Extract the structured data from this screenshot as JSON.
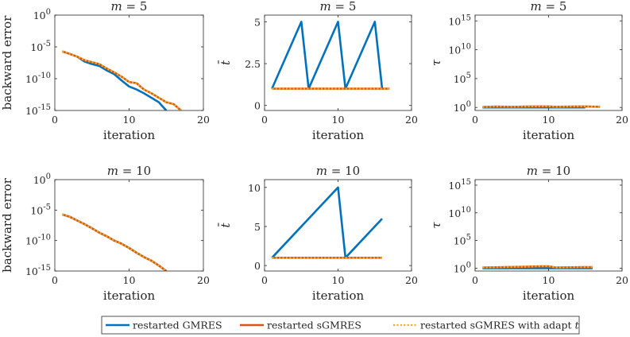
{
  "legend": {
    "entries": [
      {
        "label": "restarted GMRES",
        "color": "#0072BD",
        "style": "solid"
      },
      {
        "label": "restarted sGMRES",
        "color": "#D95319",
        "style": "solid"
      },
      {
        "label": "restarted sGMRES with adapt t",
        "color": "#EDB120",
        "style": "dotted"
      }
    ]
  },
  "chart_data": [
    {
      "type": "line",
      "title": "m = 5",
      "xlabel": "iteration",
      "ylabel": "backward error",
      "yscale": "log",
      "xlim": [
        0,
        20
      ],
      "ylim": [
        1e-15,
        1
      ],
      "xticks": [
        0,
        10,
        20
      ],
      "xtick_labels": [
        "0",
        "10",
        "20"
      ],
      "yticks": [
        1,
        1e-05,
        1e-10,
        1e-15
      ],
      "ytick_labels": [
        "10^0",
        "10^-5",
        "10^-10",
        "10^-15"
      ],
      "series": [
        {
          "name": "restarted GMRES",
          "x": [
            1,
            2,
            3,
            4,
            5,
            6,
            7,
            8,
            9,
            10,
            11,
            12,
            13,
            14,
            15
          ],
          "y": [
            2e-06,
            8e-07,
            3e-07,
            5e-08,
            2e-08,
            1e-08,
            2e-09,
            5e-10,
            5e-11,
            6e-12,
            2e-12,
            5e-13,
            1e-13,
            2e-14,
            1e-15
          ]
        },
        {
          "name": "restarted sGMRES",
          "x": [
            1,
            2,
            3,
            4,
            5,
            6,
            7,
            8,
            9,
            10,
            11,
            12,
            13,
            14,
            15,
            16,
            17
          ],
          "y": [
            2e-06,
            8e-07,
            3e-07,
            8e-08,
            4e-08,
            2e-08,
            4e-09,
            1e-09,
            2e-10,
            3e-11,
            2e-11,
            2e-12,
            5e-13,
            1e-13,
            2e-14,
            1e-14,
            1e-15
          ]
        },
        {
          "name": "restarted sGMRES with adapt t",
          "x": [
            1,
            2,
            3,
            4,
            5,
            6,
            7,
            8,
            9,
            10,
            11,
            12,
            13,
            14,
            15,
            16,
            17
          ],
          "y": [
            2e-06,
            8e-07,
            3e-07,
            8e-08,
            4e-08,
            2e-08,
            4e-09,
            1e-09,
            2e-10,
            3e-11,
            2e-11,
            2e-12,
            5e-13,
            1e-13,
            2e-14,
            1e-14,
            1e-15
          ]
        }
      ]
    },
    {
      "type": "line",
      "title": "m = 5",
      "xlabel": "iteration",
      "ylabel": "t̄",
      "yscale": "linear",
      "xlim": [
        0,
        20
      ],
      "ylim": [
        -0.3,
        5.4
      ],
      "xticks": [
        0,
        10,
        20
      ],
      "xtick_labels": [
        "0",
        "10",
        "20"
      ],
      "yticks": [
        0,
        2.5,
        5
      ],
      "ytick_labels": [
        "0",
        "2.5",
        "5"
      ],
      "series": [
        {
          "name": "restarted GMRES",
          "x": [
            1,
            5,
            6,
            10,
            11,
            15,
            16
          ],
          "y": [
            1,
            5,
            1,
            5,
            1,
            5,
            1
          ]
        },
        {
          "name": "restarted sGMRES",
          "x": [
            1,
            17
          ],
          "y": [
            1,
            1
          ]
        },
        {
          "name": "restarted sGMRES with adapt t",
          "x": [
            1,
            17
          ],
          "y": [
            1,
            1
          ]
        }
      ]
    },
    {
      "type": "line",
      "title": "m = 5",
      "xlabel": "iteration",
      "ylabel": "τ",
      "yscale": "log",
      "xlim": [
        0,
        20
      ],
      "ylim": [
        0.3,
        1e+16
      ],
      "xticks": [
        0,
        10,
        20
      ],
      "xtick_labels": [
        "0",
        "10",
        "20"
      ],
      "yticks": [
        1,
        100000.0,
        10000000000.0,
        1000000000000000.0
      ],
      "ytick_labels": [
        "10^0",
        "10^5",
        "10^10",
        "10^15"
      ],
      "series": [
        {
          "name": "restarted GMRES",
          "x": [
            1,
            15
          ],
          "y": [
            1,
            1
          ]
        },
        {
          "name": "restarted sGMRES",
          "x": [
            1,
            3,
            5,
            7,
            9,
            10,
            11,
            13,
            15,
            17
          ],
          "y": [
            1.2,
            1.4,
            1.3,
            1.4,
            1.5,
            1.5,
            1.3,
            1.4,
            1.5,
            1.3
          ]
        },
        {
          "name": "restarted sGMRES with adapt t",
          "x": [
            1,
            3,
            5,
            7,
            9,
            10,
            11,
            13,
            15,
            17
          ],
          "y": [
            1.2,
            1.4,
            1.3,
            1.4,
            1.5,
            1.5,
            1.3,
            1.4,
            1.5,
            1.3
          ]
        }
      ]
    },
    {
      "type": "line",
      "title": "m = 10",
      "xlabel": "iteration",
      "ylabel": "backward error",
      "yscale": "log",
      "xlim": [
        0,
        20
      ],
      "ylim": [
        1e-15,
        1
      ],
      "xticks": [
        0,
        10,
        20
      ],
      "xtick_labels": [
        "0",
        "10",
        "20"
      ],
      "yticks": [
        1,
        1e-05,
        1e-10,
        1e-15
      ],
      "ytick_labels": [
        "10^0",
        "10^-5",
        "10^-10",
        "10^-15"
      ],
      "series": [
        {
          "name": "restarted GMRES",
          "x": [
            1,
            2,
            3,
            4,
            5,
            6,
            7,
            8,
            9,
            10,
            11,
            12,
            13,
            14,
            15
          ],
          "y": [
            2e-06,
            8e-07,
            2e-07,
            5e-08,
            1e-08,
            2e-09,
            5e-10,
            1e-10,
            3e-11,
            6e-12,
            1e-12,
            2e-13,
            5e-14,
            8e-15,
            1e-15
          ]
        },
        {
          "name": "restarted sGMRES",
          "x": [
            1,
            2,
            3,
            4,
            5,
            6,
            7,
            8,
            9,
            10,
            11,
            12,
            13,
            14,
            15
          ],
          "y": [
            2e-06,
            8e-07,
            2e-07,
            5e-08,
            1e-08,
            2e-09,
            5e-10,
            1e-10,
            3e-11,
            6e-12,
            1e-12,
            2e-13,
            5e-14,
            8e-15,
            1e-15
          ]
        },
        {
          "name": "restarted sGMRES with adapt t",
          "x": [
            1,
            2,
            3,
            4,
            5,
            6,
            7,
            8,
            9,
            10,
            11,
            12,
            13,
            14,
            15
          ],
          "y": [
            2e-06,
            8e-07,
            2e-07,
            5e-08,
            1e-08,
            2e-09,
            5e-10,
            1e-10,
            3e-11,
            6e-12,
            1e-12,
            2e-13,
            5e-14,
            8e-15,
            1e-15
          ]
        }
      ]
    },
    {
      "type": "line",
      "title": "m = 10",
      "xlabel": "iteration",
      "ylabel": "t̄",
      "yscale": "linear",
      "xlim": [
        0,
        20
      ],
      "ylim": [
        -0.7,
        11
      ],
      "xticks": [
        0,
        10,
        20
      ],
      "xtick_labels": [
        "0",
        "10",
        "20"
      ],
      "yticks": [
        0,
        5,
        10
      ],
      "ytick_labels": [
        "0",
        "5",
        "10"
      ],
      "series": [
        {
          "name": "restarted GMRES",
          "x": [
            1,
            10,
            11,
            16
          ],
          "y": [
            1,
            10,
            1,
            6
          ]
        },
        {
          "name": "restarted sGMRES",
          "x": [
            1,
            16
          ],
          "y": [
            1,
            1
          ]
        },
        {
          "name": "restarted sGMRES with adapt t",
          "x": [
            1,
            16
          ],
          "y": [
            1,
            1
          ]
        }
      ]
    },
    {
      "type": "line",
      "title": "m = 10",
      "xlabel": "iteration",
      "ylabel": "τ",
      "yscale": "log",
      "xlim": [
        0,
        20
      ],
      "ylim": [
        0.3,
        1e+16
      ],
      "xticks": [
        0,
        10,
        20
      ],
      "xtick_labels": [
        "0",
        "10",
        "20"
      ],
      "yticks": [
        1,
        100000.0,
        10000000000.0,
        1000000000000000.0
      ],
      "ytick_labels": [
        "10^0",
        "10^5",
        "10^10",
        "10^15"
      ],
      "series": [
        {
          "name": "restarted GMRES",
          "x": [
            1,
            16
          ],
          "y": [
            1,
            1
          ]
        },
        {
          "name": "restarted sGMRES",
          "x": [
            1,
            3,
            5,
            7,
            9,
            10,
            11,
            13,
            15,
            16
          ],
          "y": [
            1.3,
            1.4,
            1.6,
            1.8,
            2.1,
            2.2,
            1.3,
            1.4,
            1.5,
            1.5
          ]
        },
        {
          "name": "restarted sGMRES with adapt t",
          "x": [
            1,
            3,
            5,
            7,
            9,
            10,
            11,
            13,
            15,
            16
          ],
          "y": [
            1.3,
            1.4,
            1.6,
            1.8,
            2.1,
            2.2,
            1.3,
            1.4,
            1.5,
            1.5
          ]
        }
      ]
    }
  ]
}
